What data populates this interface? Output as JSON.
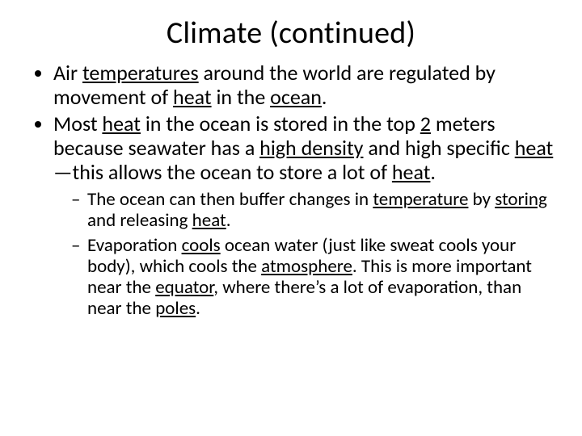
{
  "slide": {
    "title": "Climate (continued)",
    "bullets_level1": [
      {
        "segments": [
          {
            "t": "Air ",
            "u": false
          },
          {
            "t": "temperatures",
            "u": true
          },
          {
            "t": " around the world are regulated by movement of ",
            "u": false
          },
          {
            "t": "heat",
            "u": true
          },
          {
            "t": " in the ",
            "u": false
          },
          {
            "t": "ocean",
            "u": true
          },
          {
            "t": ".",
            "u": false
          }
        ]
      },
      {
        "segments": [
          {
            "t": "Most ",
            "u": false
          },
          {
            "t": "heat",
            "u": true
          },
          {
            "t": " in the ocean is stored in the top ",
            "u": false
          },
          {
            "t": "2",
            "u": true
          },
          {
            "t": " meters because seawater has a ",
            "u": false
          },
          {
            "t": "high density",
            "u": true
          },
          {
            "t": " and high specific ",
            "u": false
          },
          {
            "t": "heat",
            "u": true
          },
          {
            "t": "—this allows the ocean to store a lot of ",
            "u": false
          },
          {
            "t": "heat",
            "u": true
          },
          {
            "t": ".",
            "u": false
          }
        ]
      }
    ],
    "bullets_level2": [
      {
        "segments": [
          {
            "t": "The ocean can then buffer changes in ",
            "u": false
          },
          {
            "t": "temperature",
            "u": true
          },
          {
            "t": " by ",
            "u": false
          },
          {
            "t": "storing",
            "u": true
          },
          {
            "t": " and releasing ",
            "u": false
          },
          {
            "t": "heat",
            "u": true
          },
          {
            "t": ".",
            "u": false
          }
        ]
      },
      {
        "segments": [
          {
            "t": "Evaporation ",
            "u": false
          },
          {
            "t": "cools",
            "u": true
          },
          {
            "t": " ocean water (just like sweat cools your body), which cools the ",
            "u": false
          },
          {
            "t": "atmosphere",
            "u": true
          },
          {
            "t": ". This is more important near the ",
            "u": false
          },
          {
            "t": "equator",
            "u": true
          },
          {
            "t": ", where there’s a lot of evaporation, than near the ",
            "u": false
          },
          {
            "t": "poles",
            "u": true
          },
          {
            "t": ".",
            "u": false
          }
        ]
      }
    ]
  },
  "style": {
    "background_color": "#ffffff",
    "text_color": "#000000",
    "title_fontsize": 38,
    "body_fontsize_l1": 26,
    "body_fontsize_l2": 23,
    "font_family": "Calibri"
  }
}
